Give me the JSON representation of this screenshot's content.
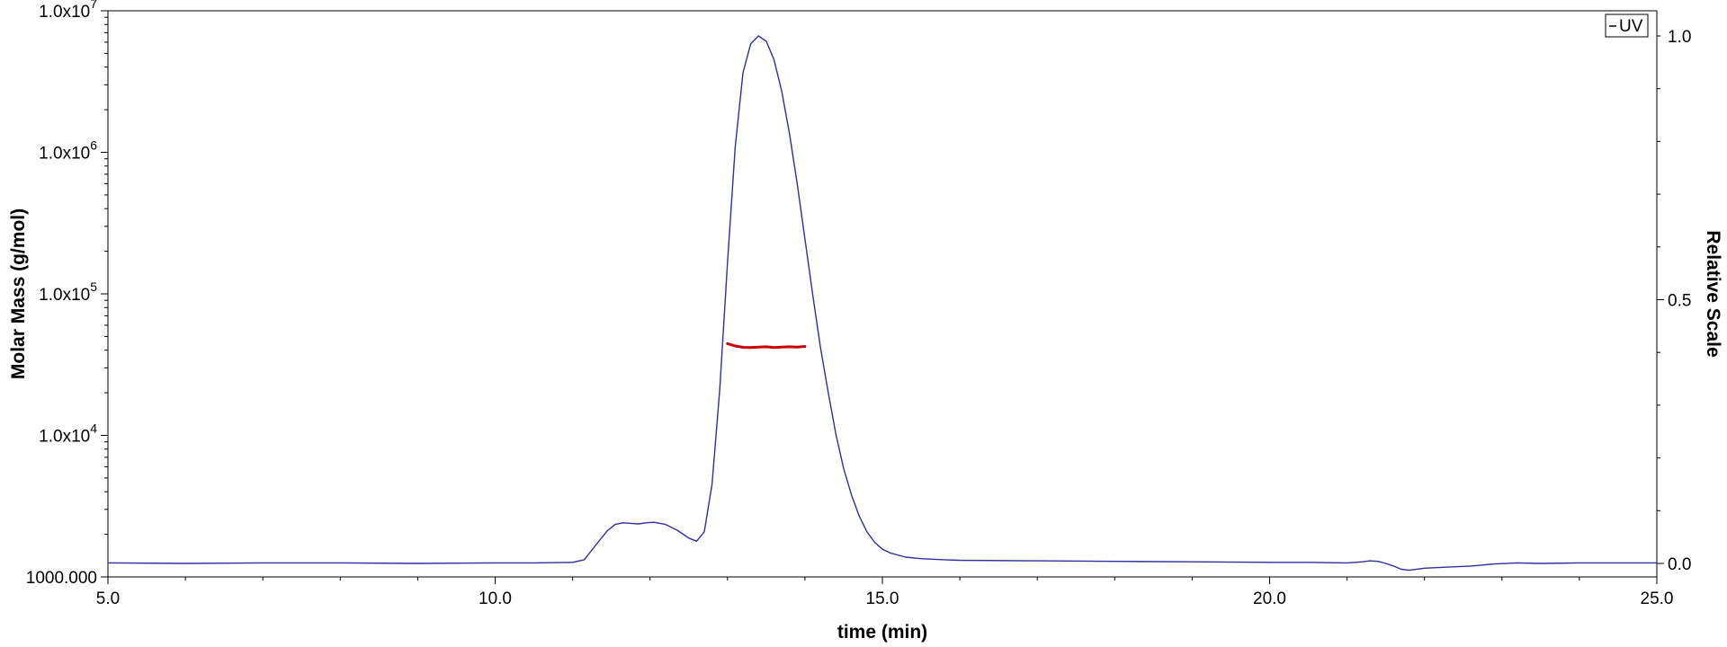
{
  "chart_data": {
    "type": "line",
    "xlabel": "time (min)",
    "ylabel_left": "Molar Mass (g/mol)",
    "ylabel_right": "Relative Scale",
    "x_range": [
      5.0,
      25.0
    ],
    "y_left_range": [
      1000,
      10000000
    ],
    "y_left_scale": "log",
    "y_right_range": [
      0.0,
      1.0
    ],
    "x_ticks": [
      {
        "value": 5.0,
        "label": "5.0"
      },
      {
        "value": 10.0,
        "label": "10.0"
      },
      {
        "value": 15.0,
        "label": "15.0"
      },
      {
        "value": 20.0,
        "label": "20.0"
      },
      {
        "value": 25.0,
        "label": "25.0"
      }
    ],
    "y_left_ticks": [
      {
        "value": 1000,
        "label": "1000.000",
        "exp": ""
      },
      {
        "value": 10000,
        "label": "1.0x10",
        "exp": "4"
      },
      {
        "value": 100000,
        "label": "1.0x10",
        "exp": "5"
      },
      {
        "value": 1000000,
        "label": "1.0x10",
        "exp": "6"
      },
      {
        "value": 10000000,
        "label": "1.0x10",
        "exp": "7"
      }
    ],
    "y_right_ticks": [
      {
        "value": 0.0,
        "label": "0.0"
      },
      {
        "value": 0.5,
        "label": "0.5"
      },
      {
        "value": 1.0,
        "label": "1.0"
      }
    ],
    "legend": {
      "position": "top-right",
      "entries": [
        "UV"
      ]
    },
    "grid": false,
    "series": [
      {
        "name": "UV",
        "axis": "right",
        "color": "#2f2fa0",
        "x": [
          5.0,
          6.0,
          7.0,
          8.0,
          9.0,
          10.0,
          10.5,
          11.0,
          11.15,
          11.3,
          11.45,
          11.55,
          11.65,
          11.75,
          11.85,
          11.95,
          12.05,
          12.2,
          12.35,
          12.5,
          12.6,
          12.7,
          12.8,
          12.9,
          13.0,
          13.1,
          13.2,
          13.3,
          13.4,
          13.5,
          13.6,
          13.7,
          13.8,
          13.9,
          14.0,
          14.1,
          14.2,
          14.3,
          14.4,
          14.5,
          14.6,
          14.7,
          14.8,
          14.9,
          15.0,
          15.1,
          15.3,
          15.5,
          15.8,
          16.0,
          17.0,
          18.0,
          19.0,
          20.0,
          20.5,
          21.0,
          21.2,
          21.3,
          21.4,
          21.5,
          21.6,
          21.7,
          21.8,
          22.0,
          22.3,
          22.6,
          22.9,
          23.2,
          23.5,
          24.0,
          25.0
        ],
        "y": [
          0.001,
          0.0,
          0.001,
          0.001,
          0.0,
          0.001,
          0.001,
          0.002,
          0.007,
          0.035,
          0.062,
          0.074,
          0.077,
          0.076,
          0.075,
          0.077,
          0.078,
          0.074,
          0.063,
          0.048,
          0.042,
          0.06,
          0.15,
          0.33,
          0.57,
          0.79,
          0.93,
          0.985,
          1.0,
          0.99,
          0.955,
          0.895,
          0.815,
          0.72,
          0.615,
          0.51,
          0.41,
          0.325,
          0.245,
          0.18,
          0.13,
          0.09,
          0.06,
          0.04,
          0.027,
          0.02,
          0.012,
          0.009,
          0.007,
          0.006,
          0.005,
          0.004,
          0.003,
          0.002,
          0.002,
          0.001,
          0.003,
          0.005,
          0.004,
          0.0,
          -0.005,
          -0.011,
          -0.013,
          -0.009,
          -0.007,
          -0.005,
          -0.001,
          0.001,
          0.0,
          0.001,
          0.001
        ]
      },
      {
        "name": "Molar Mass",
        "axis": "left",
        "color": "#cc0000",
        "x": [
          13.0,
          13.1,
          13.2,
          13.3,
          13.4,
          13.5,
          13.6,
          13.7,
          13.8,
          13.9,
          14.0
        ],
        "y": [
          44500,
          42800,
          41900,
          41700,
          42100,
          42300,
          41800,
          42000,
          42300,
          42000,
          42500
        ]
      }
    ]
  }
}
